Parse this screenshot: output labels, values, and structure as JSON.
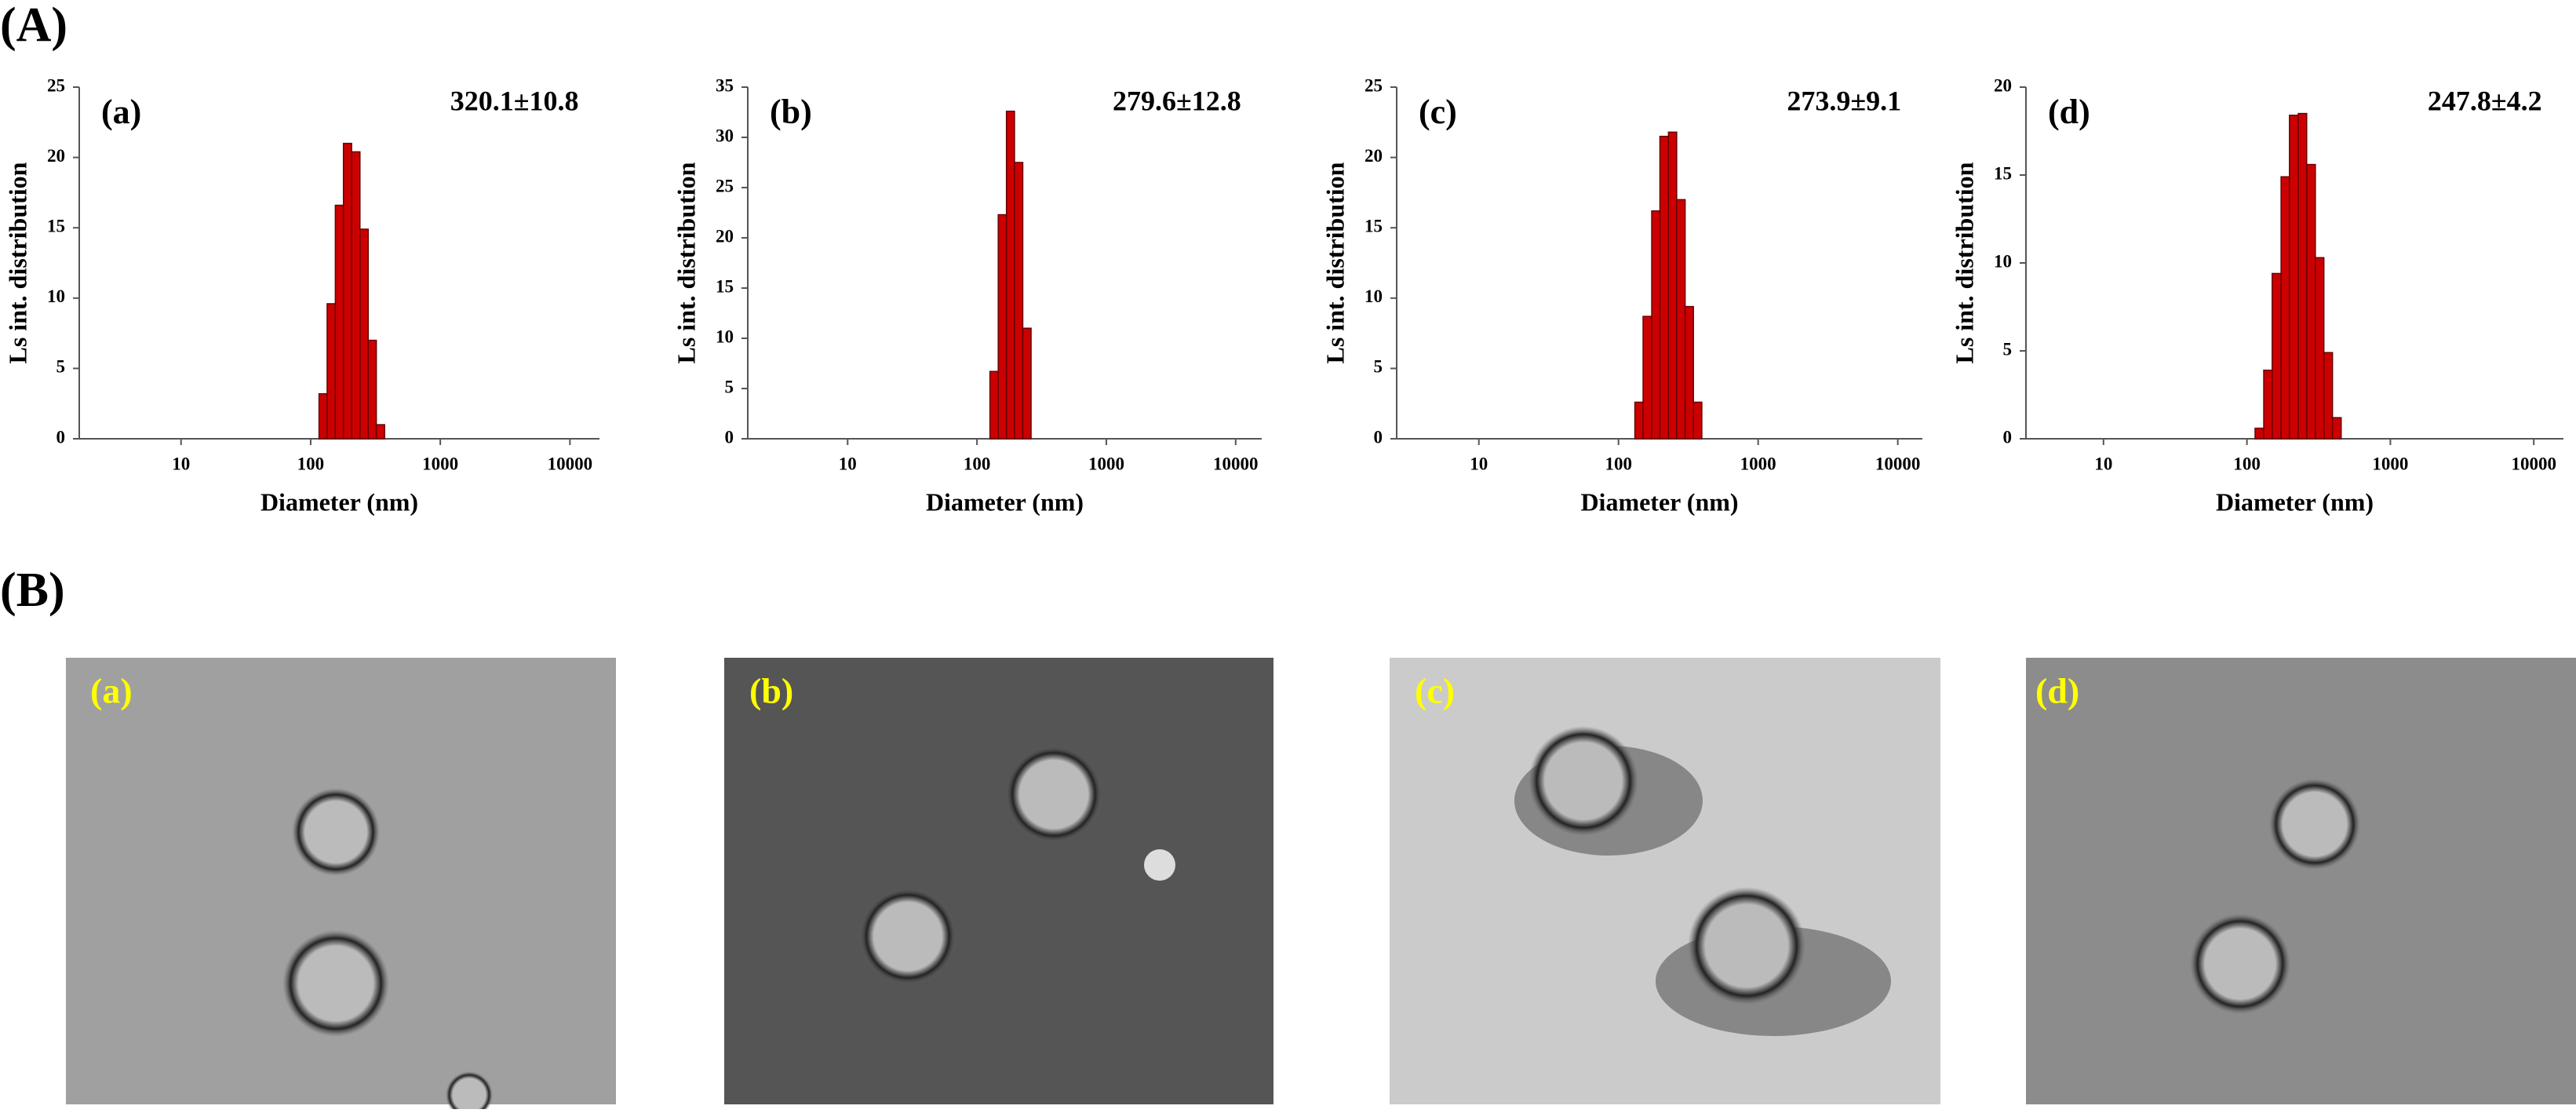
{
  "panels": [
    "(A)",
    "(B)"
  ],
  "images": [
    {
      "label": "(a)"
    },
    {
      "label": "(b)"
    },
    {
      "label": "(c)"
    },
    {
      "label": "(d)"
    }
  ],
  "chart_data": [
    {
      "type": "histogram",
      "panel_label": "(a)",
      "annotation": "320.1±10.8",
      "xlabel": "Diameter (nm)",
      "ylabel": "Ls int. distribution",
      "bins": [
        116,
        134,
        155,
        179,
        207,
        240,
        278,
        321,
        372
      ],
      "values": [
        3.2,
        9.6,
        16.6,
        21,
        20.4,
        14.9,
        7,
        1
      ],
      "color": "#cc0000",
      "xscale": "log",
      "xlim": [
        1.64,
        16900
      ],
      "xticks": [
        10,
        100,
        1000,
        10000
      ],
      "ylim": [
        0,
        25
      ],
      "yticks": [
        0,
        5,
        10,
        15,
        20,
        25
      ]
    },
    {
      "type": "histogram",
      "panel_label": "(b)",
      "annotation": "279.6±12.8",
      "xlabel": "Diameter (nm)",
      "ylabel": "Ls int. distribution",
      "bins": [
        126,
        146,
        169,
        195,
        226,
        262
      ],
      "values": [
        6.7,
        22.3,
        32.6,
        27.5,
        11
      ],
      "color": "#cc0000",
      "xscale": "log",
      "xlim": [
        1.69,
        15900
      ],
      "xticks": [
        10,
        100,
        1000,
        10000
      ],
      "ylim": [
        0,
        35
      ],
      "yticks": [
        0,
        5,
        10,
        15,
        20,
        25,
        30,
        35
      ]
    },
    {
      "type": "histogram",
      "panel_label": "(c)",
      "annotation": "273.9±9.1",
      "xlabel": "Diameter (nm)",
      "ylabel": "Ls int. distribution",
      "bins": [
        131,
        150,
        173,
        198,
        228,
        261,
        300,
        344,
        395
      ],
      "values": [
        2.6,
        8.7,
        16.2,
        21.5,
        21.8,
        17,
        9.4,
        2.6
      ],
      "color": "#cc0000",
      "xscale": "log",
      "xlim": [
        2.58,
        15000
      ],
      "xticks": [
        10,
        100,
        1000,
        10000
      ],
      "ylim": [
        0,
        25
      ],
      "yticks": [
        0,
        5,
        10,
        15,
        20,
        25
      ]
    },
    {
      "type": "histogram",
      "panel_label": "(d)",
      "annotation": "247.8±4.2",
      "xlabel": "Diameter (nm)",
      "ylabel": "Ls int. distribution",
      "bins": [
        114,
        131,
        150,
        173,
        198,
        228,
        261,
        300,
        344,
        395,
        454
      ],
      "values": [
        0.6,
        3.9,
        9.4,
        14.9,
        18.4,
        18.5,
        15.6,
        10.3,
        4.9,
        1.2
      ],
      "color": "#cc0000",
      "xscale": "log",
      "xlim": [
        2.88,
        16100
      ],
      "xticks": [
        10,
        100,
        1000,
        10000
      ],
      "ylim": [
        0,
        20
      ],
      "yticks": [
        0,
        5,
        10,
        15,
        20
      ]
    }
  ]
}
